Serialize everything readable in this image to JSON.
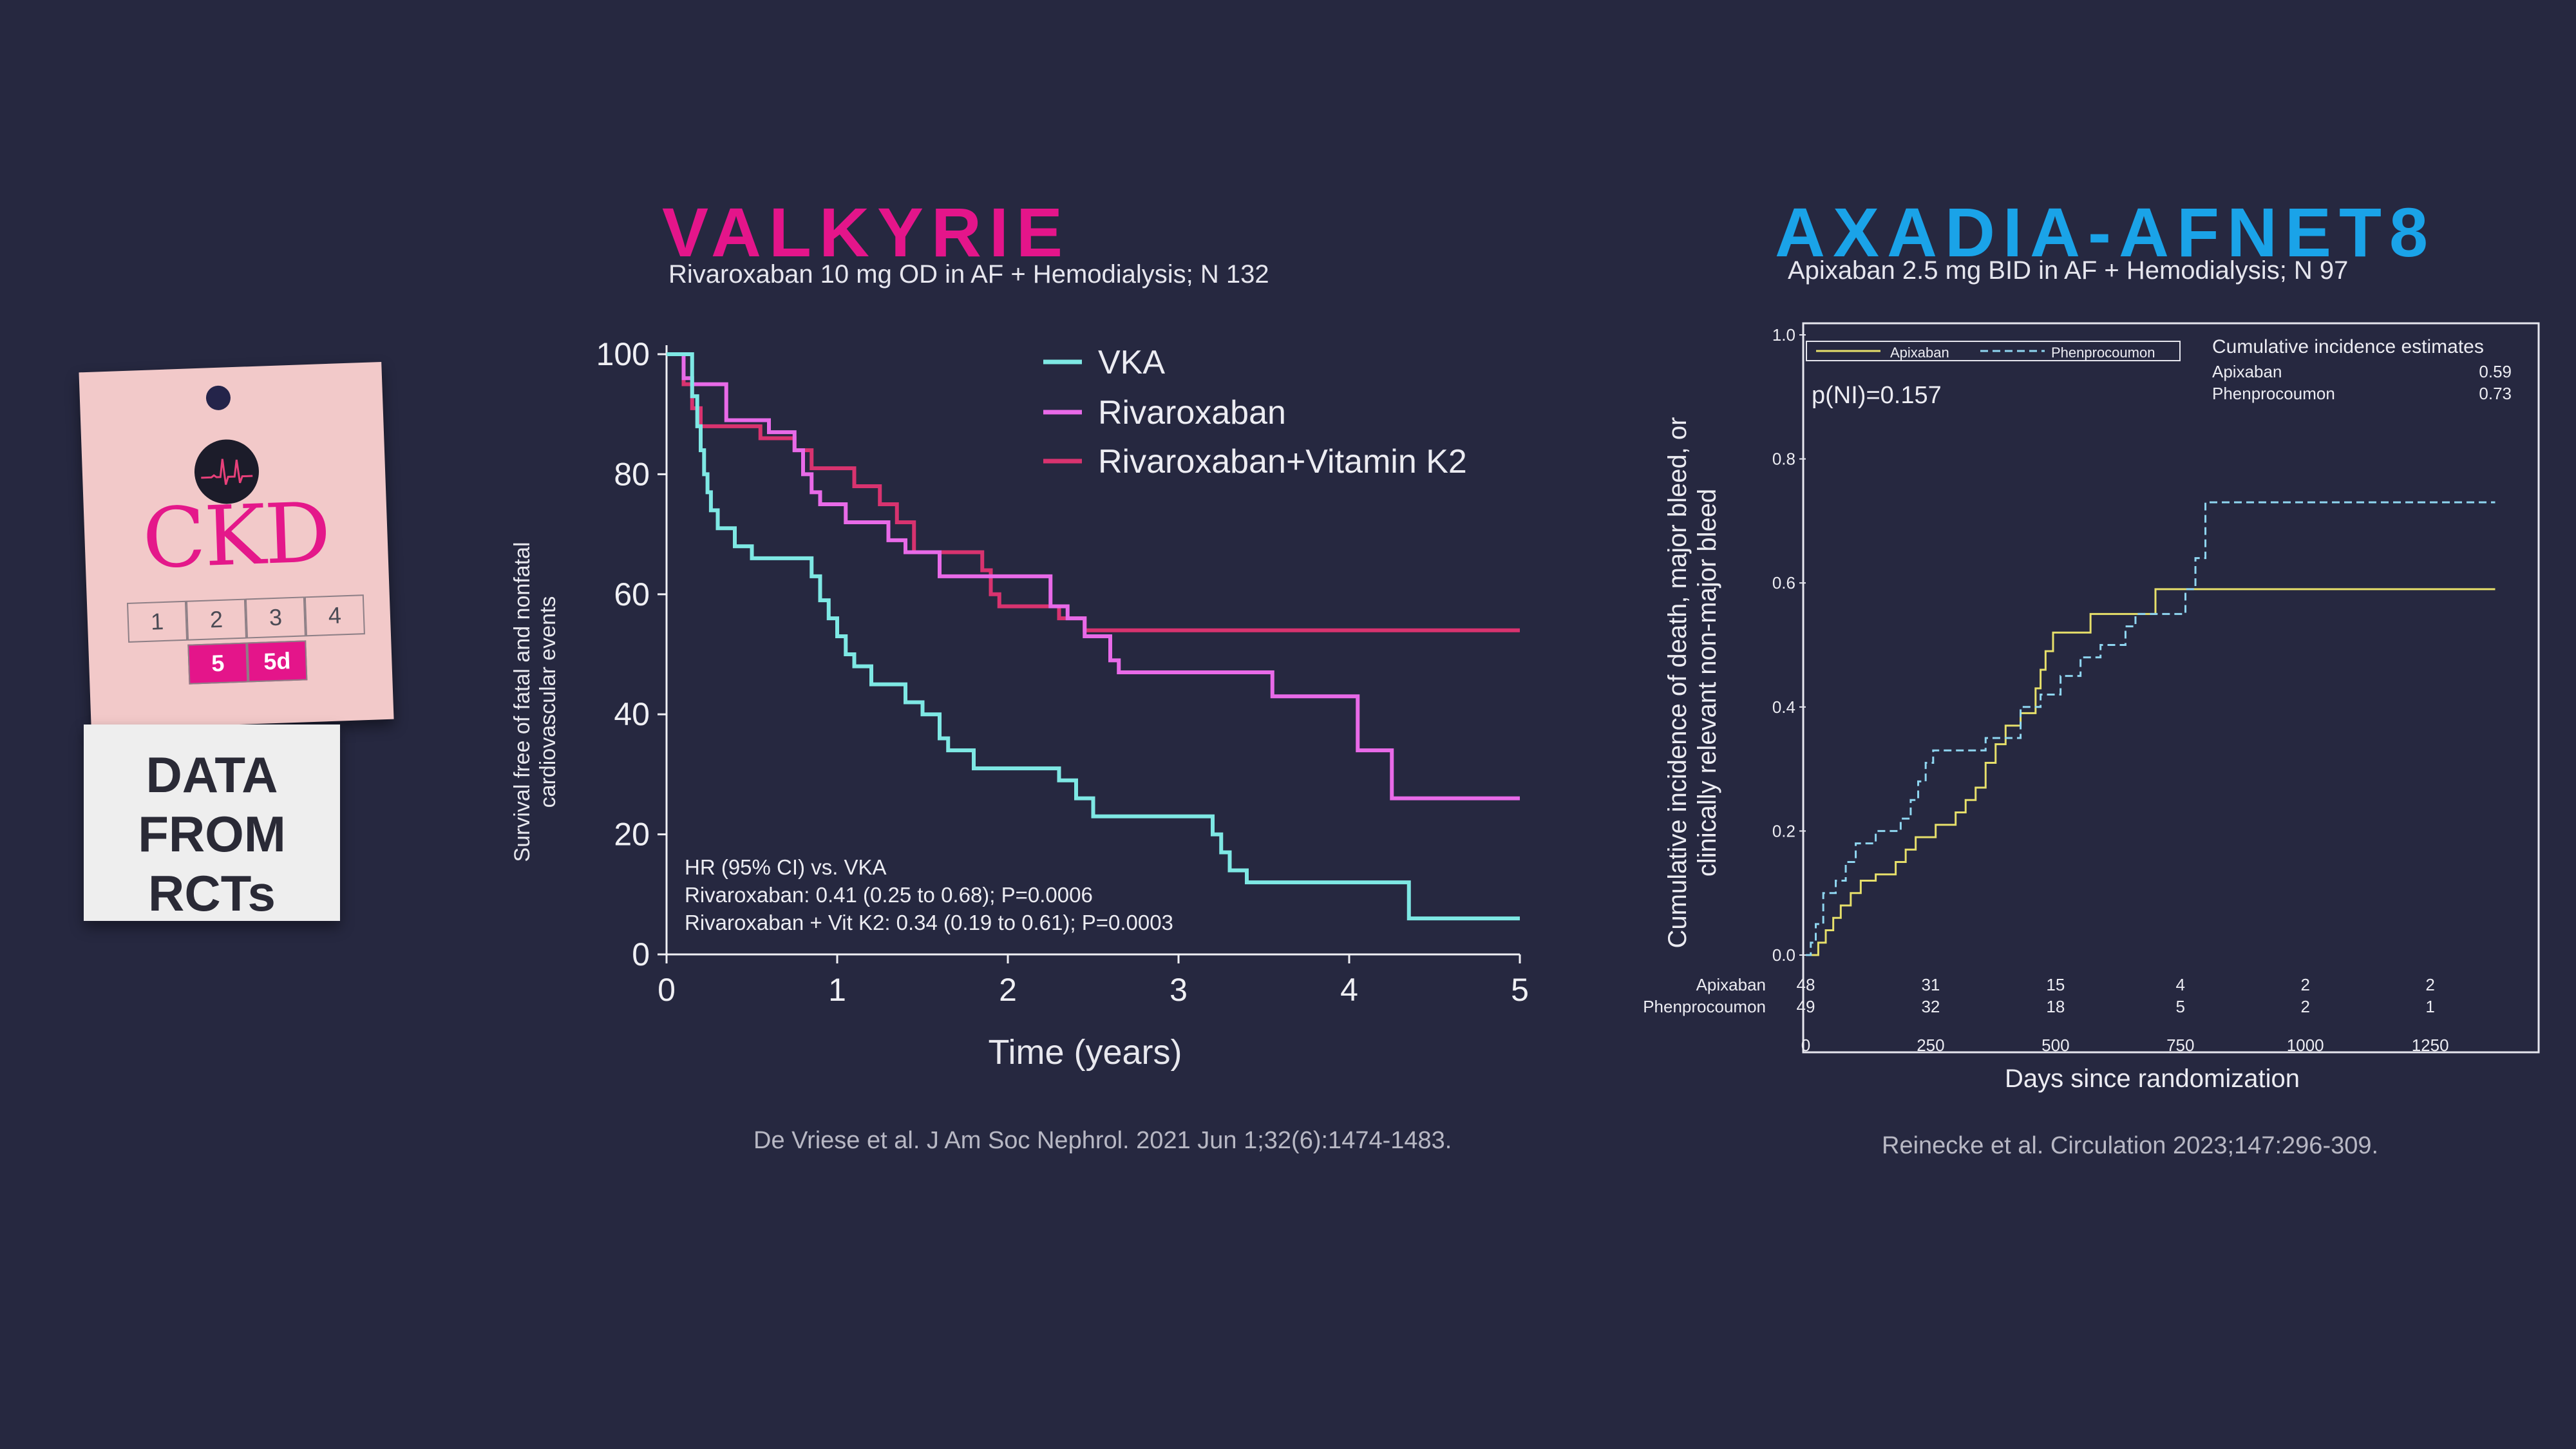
{
  "ckd_badge": {
    "label": "CKD",
    "stages": [
      "1",
      "2",
      "3",
      "4"
    ],
    "highlighted_stages": [
      "5",
      "5d"
    ],
    "caption_lines": [
      "DATA",
      "FROM",
      "RCTs"
    ],
    "accent_color": "#e4188a"
  },
  "valkyrie": {
    "title": "VALKYRIE",
    "subtitle": "Rivaroxaban 10 mg OD in AF + Hemodialysis; N 132",
    "citation": "De Vriese et al. J Am Soc Nephrol. 2021 Jun 1;32(6):1474-1483.",
    "title_color": "#e4158a",
    "stats_lines": [
      "HR (95% CI) vs. VKA",
      "Rivaroxaban: 0.41 (0.25 to 0.68); P=0.0006",
      "Rivaroxaban + Vit K2: 0.34 (0.19 to 0.61); P=0.0003"
    ]
  },
  "axadia": {
    "title": "AXADIA-AFNET8",
    "subtitle": "Apixaban 2.5 mg BID in AF + Hemodialysis; N 97",
    "citation": "Reinecke et al. Circulation 2023;147:296-309.",
    "title_color": "#1aa3e8",
    "p_value": "p(NI)=0.157",
    "estimates_header": "Cumulative incidence estimates",
    "estimates": [
      {
        "label": "Apixaban",
        "value": "0.59"
      },
      {
        "label": "Phenprocoumon",
        "value": "0.73"
      }
    ],
    "at_risk": [
      {
        "label": "Apixaban",
        "values": [
          "48",
          "31",
          "15",
          "4",
          "2",
          "2"
        ]
      },
      {
        "label": "Phenprocoumon",
        "values": [
          "49",
          "32",
          "18",
          "5",
          "2",
          "1"
        ]
      }
    ]
  },
  "chart_data": [
    {
      "type": "line",
      "step": true,
      "xlabel": "Time (years)",
      "ylabel": "Survival free of fatal and nonfatal cardiovascular events",
      "xlim": [
        0,
        5
      ],
      "ylim": [
        0,
        100
      ],
      "xticks": [
        0,
        1,
        2,
        3,
        4,
        5
      ],
      "yticks": [
        0,
        20,
        40,
        60,
        80,
        100
      ],
      "legend": "top-right",
      "series": [
        {
          "name": "VKA",
          "color": "#7ee8e4",
          "points": [
            [
              0,
              100
            ],
            [
              0.1,
              100
            ],
            [
              0.15,
              93
            ],
            [
              0.18,
              88
            ],
            [
              0.2,
              84
            ],
            [
              0.22,
              80
            ],
            [
              0.24,
              77
            ],
            [
              0.26,
              74
            ],
            [
              0.3,
              71
            ],
            [
              0.4,
              68
            ],
            [
              0.5,
              66
            ],
            [
              0.8,
              66
            ],
            [
              0.85,
              63
            ],
            [
              0.9,
              59
            ],
            [
              0.95,
              56
            ],
            [
              1.0,
              53
            ],
            [
              1.05,
              50
            ],
            [
              1.1,
              48
            ],
            [
              1.2,
              45
            ],
            [
              1.4,
              42
            ],
            [
              1.5,
              40
            ],
            [
              1.6,
              36
            ],
            [
              1.65,
              34
            ],
            [
              1.8,
              31
            ],
            [
              2.3,
              29
            ],
            [
              2.4,
              26
            ],
            [
              2.5,
              23
            ],
            [
              3.2,
              20
            ],
            [
              3.25,
              17
            ],
            [
              3.3,
              14
            ],
            [
              3.4,
              12
            ],
            [
              4.3,
              12
            ],
            [
              4.35,
              6
            ],
            [
              5,
              6
            ]
          ]
        },
        {
          "name": "Rivaroxaban",
          "color": "#e86ae8",
          "points": [
            [
              0,
              100
            ],
            [
              0.05,
              100
            ],
            [
              0.1,
              96
            ],
            [
              0.15,
              95
            ],
            [
              0.3,
              95
            ],
            [
              0.35,
              89
            ],
            [
              0.5,
              89
            ],
            [
              0.6,
              87
            ],
            [
              0.75,
              84
            ],
            [
              0.8,
              80
            ],
            [
              0.85,
              77
            ],
            [
              0.9,
              75
            ],
            [
              1.05,
              72
            ],
            [
              1.3,
              69
            ],
            [
              1.4,
              67
            ],
            [
              1.6,
              63
            ],
            [
              2.2,
              63
            ],
            [
              2.25,
              58
            ],
            [
              2.35,
              56
            ],
            [
              2.45,
              53
            ],
            [
              2.6,
              49
            ],
            [
              2.65,
              47
            ],
            [
              3.5,
              47
            ],
            [
              3.55,
              43
            ],
            [
              4.0,
              43
            ],
            [
              4.05,
              34
            ],
            [
              4.2,
              34
            ],
            [
              4.25,
              26
            ],
            [
              5,
              26
            ]
          ]
        },
        {
          "name": "Rivaroxaban+Vitamin K2",
          "color": "#d8336f",
          "points": [
            [
              0,
              100
            ],
            [
              0.08,
              100
            ],
            [
              0.1,
              95
            ],
            [
              0.15,
              91
            ],
            [
              0.2,
              88
            ],
            [
              0.5,
              88
            ],
            [
              0.55,
              86
            ],
            [
              0.75,
              84
            ],
            [
              0.85,
              81
            ],
            [
              1.1,
              78
            ],
            [
              1.25,
              75
            ],
            [
              1.35,
              72
            ],
            [
              1.45,
              67
            ],
            [
              1.85,
              64
            ],
            [
              1.9,
              60
            ],
            [
              1.95,
              58
            ],
            [
              2.2,
              58
            ],
            [
              2.3,
              56
            ],
            [
              2.45,
              54
            ],
            [
              5,
              54
            ]
          ]
        }
      ]
    },
    {
      "type": "line",
      "step": true,
      "xlabel": "Days since randomization",
      "ylabel": "Cumulative incidence of death, major bleed, or clinically relevant non-major bleed",
      "xlim": [
        0,
        1400
      ],
      "ylim": [
        0,
        1.0
      ],
      "xticks": [
        0,
        250,
        500,
        750,
        1000,
        1250
      ],
      "yticks": [
        0.0,
        0.2,
        0.4,
        0.6,
        0.8,
        1.0
      ],
      "legend": "top-left",
      "series": [
        {
          "name": "Apixaban",
          "color": "#e6df6a",
          "points": [
            [
              0,
              0
            ],
            [
              20,
              0
            ],
            [
              25,
              0.02
            ],
            [
              40,
              0.04
            ],
            [
              55,
              0.06
            ],
            [
              70,
              0.08
            ],
            [
              90,
              0.1
            ],
            [
              110,
              0.12
            ],
            [
              140,
              0.13
            ],
            [
              180,
              0.15
            ],
            [
              200,
              0.17
            ],
            [
              220,
              0.19
            ],
            [
              260,
              0.21
            ],
            [
              300,
              0.23
            ],
            [
              320,
              0.25
            ],
            [
              340,
              0.27
            ],
            [
              360,
              0.31
            ],
            [
              380,
              0.34
            ],
            [
              400,
              0.37
            ],
            [
              430,
              0.39
            ],
            [
              460,
              0.43
            ],
            [
              470,
              0.46
            ],
            [
              480,
              0.49
            ],
            [
              495,
              0.52
            ],
            [
              560,
              0.52
            ],
            [
              570,
              0.55
            ],
            [
              690,
              0.55
            ],
            [
              700,
              0.59
            ],
            [
              1380,
              0.59
            ]
          ]
        },
        {
          "name": "Phenprocoumon",
          "color": "#8fd6f0",
          "points": [
            [
              0,
              0
            ],
            [
              10,
              0.02
            ],
            [
              20,
              0.05
            ],
            [
              35,
              0.1
            ],
            [
              60,
              0.12
            ],
            [
              80,
              0.15
            ],
            [
              100,
              0.18
            ],
            [
              140,
              0.2
            ],
            [
              190,
              0.22
            ],
            [
              210,
              0.25
            ],
            [
              225,
              0.28
            ],
            [
              240,
              0.31
            ],
            [
              255,
              0.33
            ],
            [
              360,
              0.35
            ],
            [
              430,
              0.4
            ],
            [
              470,
              0.42
            ],
            [
              510,
              0.45
            ],
            [
              550,
              0.48
            ],
            [
              590,
              0.5
            ],
            [
              640,
              0.53
            ],
            [
              660,
              0.55
            ],
            [
              760,
              0.59
            ],
            [
              780,
              0.64
            ],
            [
              800,
              0.73
            ],
            [
              1380,
              0.73
            ]
          ]
        }
      ]
    }
  ]
}
